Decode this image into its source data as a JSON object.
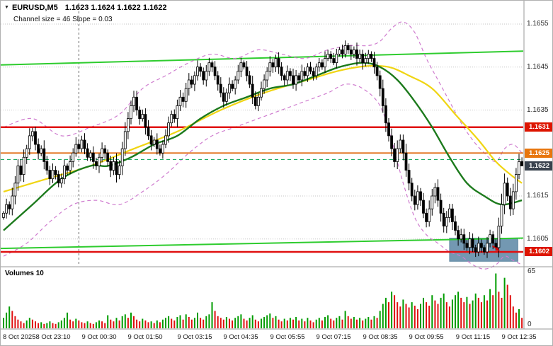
{
  "header": {
    "symbol": "EURUSD,M5",
    "ohlc": "1.1623 1.1624 1.1622 1.1622",
    "channel_info": "Channel size = 46  Slope = 0.03"
  },
  "colors": {
    "bull": "#ffffff",
    "bear": "#000000",
    "outline": "#000000",
    "vol_up": "#009c00",
    "vol_down": "#e01010",
    "ma_fast_green": "#1c7a1c",
    "ma_slow_yellow": "#f0d513",
    "channel": "#2ecc2e",
    "band": "#cf7ccf",
    "ask_line": "#00a050",
    "grid": "#c6c6c6",
    "separator": "#9a9a9a",
    "highlight_box": "#5b87a5"
  },
  "chart_data": {
    "type": "candlestick",
    "symbol": "EURUSD",
    "timeframe": "M5",
    "title": "EURUSD,M5",
    "ohlc_current": {
      "open": 1.1623,
      "high": 1.1624,
      "low": 1.1622,
      "close": 1.1622
    },
    "price_range": [
      1.1599,
      1.166
    ],
    "volumes_label": "Volumes 10",
    "volume_axis": {
      "max": 65,
      "min": 0,
      "max_label": "65",
      "min_label": "0"
    },
    "price_axis": {
      "grid": [
        1.1655,
        1.1645,
        1.1635,
        1.1625,
        1.1615,
        1.1605
      ],
      "ticks": [
        {
          "price": 1.1655,
          "label": "1.1655"
        },
        {
          "price": 1.1645,
          "label": "1.1645"
        },
        {
          "price": 1.1635,
          "label": "1.1635"
        },
        {
          "price": 1.1615,
          "label": "1.1615"
        },
        {
          "price": 1.1605,
          "label": "1.1605"
        }
      ],
      "badges": [
        {
          "price": 1.1631,
          "label": "1.1631",
          "color": "#dd1500"
        },
        {
          "price": 1.1625,
          "label": "1.1625",
          "color": "#e8760e"
        },
        {
          "price": 1.1622,
          "label": "1.1622",
          "color": "#39424e"
        },
        {
          "price": 1.1602,
          "label": "1.1602",
          "color": "#dd1500"
        }
      ]
    },
    "time_axis": [
      {
        "i": 1,
        "label": "8 Oct 2025",
        "align": "left"
      },
      {
        "i": 17,
        "label": "8 Oct 23:10"
      },
      {
        "i": 33,
        "label": "9 Oct 00:30"
      },
      {
        "i": 49,
        "label": "9 Oct 01:50"
      },
      {
        "i": 66,
        "label": "9 Oct 03:15"
      },
      {
        "i": 82,
        "label": "9 Oct 04:35"
      },
      {
        "i": 98,
        "label": "9 Oct 05:55"
      },
      {
        "i": 114,
        "label": "9 Oct 07:15"
      },
      {
        "i": 130,
        "label": "9 Oct 08:35"
      },
      {
        "i": 146,
        "label": "9 Oct 09:55"
      },
      {
        "i": 162,
        "label": "9 Oct 11:15"
      },
      {
        "i": 178,
        "label": "9 Oct 12:35"
      }
    ],
    "levels": [
      {
        "label": "1.1631",
        "price": 1.1631,
        "color": "#e01010",
        "width": 2.5
      },
      {
        "label": "1.1625",
        "price": 1.1625,
        "color": "#e0680c",
        "width": 1.8
      },
      {
        "label": "1.1602",
        "price": 1.1602,
        "color": "#e01010",
        "width": 2.5
      }
    ],
    "ask_line": {
      "price": 1.16235
    },
    "separator_index": 26,
    "channel": {
      "size": 46,
      "slope": 0.03,
      "upper": {
        "p1": 1.16455,
        "p2": 1.16487
      },
      "lower": {
        "p1": 1.16028,
        "p2": 1.16052
      }
    },
    "moving_averages": {
      "yellow": [
        [
          0,
          1.1616
        ],
        [
          15,
          1.1619
        ],
        [
          30,
          1.1622
        ],
        [
          45,
          1.1626
        ],
        [
          60,
          1.163
        ],
        [
          75,
          1.1635
        ],
        [
          90,
          1.1639
        ],
        [
          105,
          1.1642
        ],
        [
          115,
          1.1644
        ],
        [
          125,
          1.16452
        ],
        [
          133,
          1.1645
        ],
        [
          140,
          1.1643
        ],
        [
          148,
          1.164
        ],
        [
          156,
          1.1634
        ],
        [
          164,
          1.1628
        ],
        [
          170,
          1.1623
        ],
        [
          175,
          1.162
        ],
        [
          179,
          1.1618
        ]
      ],
      "green": [
        [
          0,
          1.1607
        ],
        [
          10,
          1.1613
        ],
        [
          20,
          1.1619
        ],
        [
          30,
          1.1622
        ],
        [
          36,
          1.1622
        ],
        [
          44,
          1.1624
        ],
        [
          52,
          1.1627
        ],
        [
          60,
          1.1629
        ],
        [
          68,
          1.1633
        ],
        [
          76,
          1.1636
        ],
        [
          84,
          1.1638
        ],
        [
          92,
          1.164
        ],
        [
          100,
          1.1641
        ],
        [
          108,
          1.1643
        ],
        [
          116,
          1.1645
        ],
        [
          124,
          1.1646
        ],
        [
          130,
          1.1645
        ],
        [
          136,
          1.1642
        ],
        [
          142,
          1.1637
        ],
        [
          148,
          1.1631
        ],
        [
          154,
          1.1624
        ],
        [
          160,
          1.1618
        ],
        [
          166,
          1.1615
        ],
        [
          172,
          1.1613
        ],
        [
          179,
          1.1614
        ]
      ]
    },
    "bands": {
      "upper": [
        [
          0,
          1.1631
        ],
        [
          10,
          1.1633
        ],
        [
          20,
          1.1629
        ],
        [
          30,
          1.1631
        ],
        [
          40,
          1.1634
        ],
        [
          48,
          1.164
        ],
        [
          56,
          1.1643
        ],
        [
          64,
          1.1646
        ],
        [
          72,
          1.1648
        ],
        [
          80,
          1.1647
        ],
        [
          88,
          1.1649
        ],
        [
          96,
          1.1648
        ],
        [
          104,
          1.1647
        ],
        [
          112,
          1.1649
        ],
        [
          120,
          1.165
        ],
        [
          126,
          1.165
        ],
        [
          130,
          1.1651
        ],
        [
          134,
          1.1654
        ],
        [
          138,
          1.16555
        ],
        [
          142,
          1.1653
        ],
        [
          146,
          1.1647
        ],
        [
          150,
          1.1642
        ],
        [
          154,
          1.1637
        ],
        [
          158,
          1.1632
        ],
        [
          162,
          1.1628
        ],
        [
          166,
          1.1625
        ],
        [
          170,
          1.1623
        ],
        [
          173,
          1.1626
        ],
        [
          176,
          1.1627
        ],
        [
          179,
          1.1625
        ]
      ],
      "lower": [
        [
          0,
          1.1601
        ],
        [
          8,
          1.1604
        ],
        [
          16,
          1.1609
        ],
        [
          24,
          1.1613
        ],
        [
          32,
          1.1614
        ],
        [
          40,
          1.1613
        ],
        [
          48,
          1.1616
        ],
        [
          56,
          1.162
        ],
        [
          64,
          1.1625
        ],
        [
          72,
          1.1629
        ],
        [
          80,
          1.1631
        ],
        [
          88,
          1.1633
        ],
        [
          96,
          1.1635
        ],
        [
          104,
          1.1637
        ],
        [
          112,
          1.1639
        ],
        [
          118,
          1.1641
        ],
        [
          124,
          1.164
        ],
        [
          130,
          1.1636
        ],
        [
          134,
          1.1628
        ],
        [
          138,
          1.1618
        ],
        [
          142,
          1.161
        ],
        [
          146,
          1.1606
        ],
        [
          150,
          1.1604
        ],
        [
          154,
          1.1602
        ],
        [
          158,
          1.1601
        ],
        [
          162,
          1.1599
        ],
        [
          166,
          1.1598
        ],
        [
          170,
          1.1599
        ],
        [
          173,
          1.1601
        ],
        [
          176,
          1.16
        ],
        [
          179,
          1.1599
        ]
      ]
    },
    "highlight_box": {
      "i1": 154,
      "i2": 177.6,
      "p_top": 1.16052,
      "p_bottom": 1.15998,
      "opacity": 0.85
    },
    "annotation": {
      "i": 171,
      "price": 1.16024,
      "color": "#dd0000",
      "type": "arrow"
    },
    "closes": [
      1.1611,
      1.1613,
      1.1612,
      1.1615,
      1.1618,
      1.1622,
      1.162,
      1.1624,
      1.1626,
      1.1629,
      1.163,
      1.1627,
      1.1625,
      1.1626,
      1.1623,
      1.1621,
      1.1619,
      1.1621,
      1.162,
      1.1618,
      1.1619,
      1.1622,
      1.1621,
      1.1623,
      1.1625,
      1.1627,
      1.1626,
      1.1628,
      1.1626,
      1.1624,
      1.1625,
      1.1623,
      1.1622,
      1.1624,
      1.1626,
      1.1625,
      1.1623,
      1.1621,
      1.1623,
      1.162,
      1.1622,
      1.1626,
      1.163,
      1.1633,
      1.1636,
      1.1638,
      1.1635,
      1.1633,
      1.1634,
      1.1631,
      1.1629,
      1.1627,
      1.1628,
      1.1626,
      1.1625,
      1.1627,
      1.1629,
      1.1632,
      1.1634,
      1.1633,
      1.1636,
      1.1638,
      1.1637,
      1.164,
      1.1642,
      1.1641,
      1.1643,
      1.1645,
      1.1644,
      1.1642,
      1.1644,
      1.1646,
      1.1645,
      1.1643,
      1.1641,
      1.1639,
      1.1637,
      1.1639,
      1.1641,
      1.164,
      1.1642,
      1.1644,
      1.1646,
      1.1645,
      1.1643,
      1.1641,
      1.1638,
      1.1636,
      1.1638,
      1.164,
      1.1642,
      1.1644,
      1.1646,
      1.1645,
      1.1647,
      1.1645,
      1.1643,
      1.1642,
      1.1644,
      1.1643,
      1.1641,
      1.1643,
      1.1642,
      1.1644,
      1.1643,
      1.1645,
      1.1644,
      1.1643,
      1.1645,
      1.1646,
      1.1645,
      1.1647,
      1.1648,
      1.1647,
      1.1646,
      1.1648,
      1.1649,
      1.1648,
      1.165,
      1.1649,
      1.1648,
      1.1649,
      1.1647,
      1.1648,
      1.1646,
      1.1647,
      1.1648,
      1.1647,
      1.1645,
      1.1643,
      1.164,
      1.1636,
      1.1632,
      1.1629,
      1.1626,
      1.1623,
      1.1626,
      1.1628,
      1.1625,
      1.1621,
      1.1618,
      1.1615,
      1.1613,
      1.1616,
      1.1614,
      1.1611,
      1.1609,
      1.1612,
      1.1615,
      1.1617,
      1.1614,
      1.1611,
      1.1608,
      1.161,
      1.1612,
      1.1609,
      1.1607,
      1.1605,
      1.1606,
      1.1604,
      1.1603,
      1.1605,
      1.1603,
      1.1602,
      1.1604,
      1.1603,
      1.1602,
      1.1604,
      1.1606,
      1.1604,
      1.1603,
      1.1608,
      1.1613,
      1.1618,
      1.1615,
      1.1612,
      1.1616,
      1.162,
      1.1623,
      1.1622
    ],
    "volumes": [
      12,
      18,
      25,
      20,
      14,
      10,
      8,
      6,
      9,
      12,
      10,
      8,
      6,
      7,
      5,
      6,
      8,
      6,
      5,
      7,
      9,
      12,
      18,
      10,
      8,
      11,
      9,
      7,
      6,
      8,
      6,
      5,
      7,
      9,
      8,
      6,
      15,
      10,
      8,
      12,
      9,
      14,
      16,
      12,
      18,
      14,
      10,
      8,
      11,
      9,
      7,
      8,
      6,
      9,
      7,
      10,
      12,
      14,
      11,
      9,
      13,
      15,
      10,
      16,
      13,
      10,
      12,
      18,
      12,
      10,
      14,
      16,
      30,
      20,
      14,
      12,
      10,
      13,
      11,
      9,
      12,
      14,
      16,
      11,
      9,
      12,
      15,
      10,
      8,
      11,
      13,
      15,
      17,
      12,
      14,
      10,
      8,
      11,
      9,
      12,
      10,
      13,
      9,
      11,
      8,
      12,
      9,
      7,
      10,
      12,
      9,
      13,
      15,
      11,
      9,
      12,
      14,
      10,
      20,
      14,
      11,
      13,
      10,
      12,
      9,
      11,
      13,
      10,
      14,
      12,
      20,
      28,
      35,
      30,
      42,
      38,
      30,
      25,
      33,
      28,
      24,
      30,
      26,
      22,
      28,
      35,
      30,
      26,
      38,
      32,
      28,
      35,
      40,
      30,
      25,
      33,
      38,
      42,
      35,
      30,
      36,
      28,
      32,
      40,
      35,
      30,
      38,
      32,
      45,
      38,
      63,
      42,
      35,
      58,
      50,
      38,
      25,
      18,
      22,
      12
    ]
  }
}
